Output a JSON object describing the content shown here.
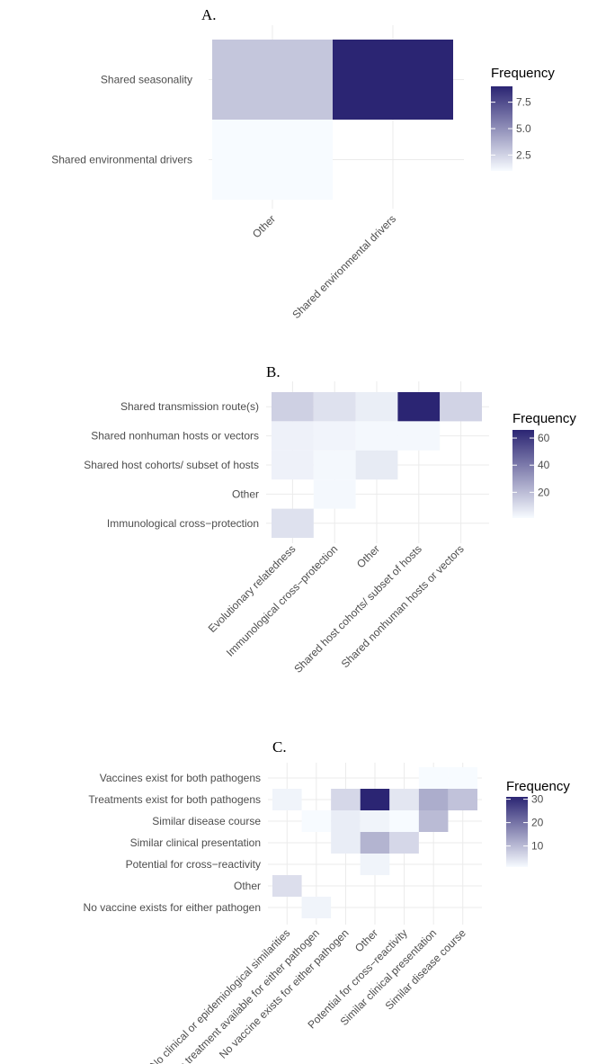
{
  "chart_data": [
    {
      "type": "heatmap",
      "title": "A.",
      "x_categories": [
        "Other",
        "Shared environmental drivers"
      ],
      "y_categories": [
        "Shared seasonality",
        "Shared environmental drivers"
      ],
      "cells": [
        {
          "x": "Other",
          "y": "Shared seasonality",
          "value": 3
        },
        {
          "x": "Shared environmental drivers",
          "y": "Shared seasonality",
          "value": 9
        },
        {
          "x": "Other",
          "y": "Shared environmental drivers",
          "value": 1
        }
      ],
      "legend": {
        "title": "Frequency",
        "ticks": [
          "2.5",
          "5.0",
          "7.5"
        ],
        "min": 1,
        "max": 9
      },
      "colors": {
        "low": "#f7fbff",
        "high": "#2b2573"
      }
    },
    {
      "type": "heatmap",
      "title": "B.",
      "x_categories": [
        "Evolutionary relatedness",
        "Immunological cross−protection",
        "Other",
        "Shared host cohorts/ subset of hosts",
        "Shared nonhuman hosts or vectors"
      ],
      "y_categories": [
        "Shared transmission route(s)",
        "Shared nonhuman hosts or vectors",
        "Shared host cohorts/ subset of hosts",
        "Other",
        "Immunological cross−protection"
      ],
      "cells": [
        {
          "x": "Evolutionary relatedness",
          "y": "Shared transmission route(s)",
          "value": 14
        },
        {
          "x": "Immunological cross−protection",
          "y": "Shared transmission route(s)",
          "value": 9
        },
        {
          "x": "Other",
          "y": "Shared transmission route(s)",
          "value": 5
        },
        {
          "x": "Shared host cohorts/ subset of hosts",
          "y": "Shared transmission route(s)",
          "value": 66
        },
        {
          "x": "Shared nonhuman hosts or vectors",
          "y": "Shared transmission route(s)",
          "value": 13
        },
        {
          "x": "Evolutionary relatedness",
          "y": "Shared nonhuman hosts or vectors",
          "value": 4
        },
        {
          "x": "Immunological cross−protection",
          "y": "Shared nonhuman hosts or vectors",
          "value": 3
        },
        {
          "x": "Other",
          "y": "Shared nonhuman hosts or vectors",
          "value": 2
        },
        {
          "x": "Shared host cohorts/ subset of hosts",
          "y": "Shared nonhuman hosts or vectors",
          "value": 2
        },
        {
          "x": "Evolutionary relatedness",
          "y": "Shared host cohorts/ subset of hosts",
          "value": 4
        },
        {
          "x": "Immunological cross−protection",
          "y": "Shared host cohorts/ subset of hosts",
          "value": 2
        },
        {
          "x": "Other",
          "y": "Shared host cohorts/ subset of hosts",
          "value": 6
        },
        {
          "x": "Immunological cross−protection",
          "y": "Other",
          "value": 2
        },
        {
          "x": "Evolutionary relatedness",
          "y": "Immunological cross−protection",
          "value": 9
        }
      ],
      "legend": {
        "title": "Frequency",
        "ticks": [
          "20",
          "40",
          "60"
        ],
        "min": 1,
        "max": 66
      },
      "colors": {
        "low": "#f7fbff",
        "high": "#2b2573"
      }
    },
    {
      "type": "heatmap",
      "title": "C.",
      "x_categories": [
        "No clinical or epidemiological similarities",
        "No treatment available for either pathogen",
        "No vaccine exists for either pathogen",
        "Other",
        "Potential for cross−reactivity",
        "Similar clinical presentation",
        "Similar disease course"
      ],
      "y_categories": [
        "Vaccines exist for both pathogens",
        "Treatments exist for both pathogens",
        "Similar disease course",
        "Similar clinical presentation",
        "Potential for cross−reactivity",
        "Other",
        "No vaccine exists for either pathogen"
      ],
      "cells": [
        {
          "x": "Similar clinical presentation",
          "y": "Vaccines exist for both pathogens",
          "value": 1
        },
        {
          "x": "Similar disease course",
          "y": "Vaccines exist for both pathogens",
          "value": 1
        },
        {
          "x": "No clinical or epidemiological similarities",
          "y": "Treatments exist for both pathogens",
          "value": 2
        },
        {
          "x": "No vaccine exists for either pathogen",
          "y": "Treatments exist for both pathogens",
          "value": 6
        },
        {
          "x": "Other",
          "y": "Treatments exist for both pathogens",
          "value": 31
        },
        {
          "x": "Potential for cross−reactivity",
          "y": "Treatments exist for both pathogens",
          "value": 4
        },
        {
          "x": "Similar clinical presentation",
          "y": "Treatments exist for both pathogens",
          "value": 12
        },
        {
          "x": "Similar disease course",
          "y": "Treatments exist for both pathogens",
          "value": 9
        },
        {
          "x": "No treatment available for either pathogen",
          "y": "Similar disease course",
          "value": 1
        },
        {
          "x": "No vaccine exists for either pathogen",
          "y": "Similar disease course",
          "value": 3
        },
        {
          "x": "Other",
          "y": "Similar disease course",
          "value": 2
        },
        {
          "x": "Potential for cross−reactivity",
          "y": "Similar disease course",
          "value": 1
        },
        {
          "x": "Similar clinical presentation",
          "y": "Similar disease course",
          "value": 10
        },
        {
          "x": "No vaccine exists for either pathogen",
          "y": "Similar clinical presentation",
          "value": 3
        },
        {
          "x": "Other",
          "y": "Similar clinical presentation",
          "value": 11
        },
        {
          "x": "Potential for cross−reactivity",
          "y": "Similar clinical presentation",
          "value": 6
        },
        {
          "x": "Other",
          "y": "Potential for cross−reactivity",
          "value": 2
        },
        {
          "x": "No clinical or epidemiological similarities",
          "y": "Other",
          "value": 5
        },
        {
          "x": "No treatment available for either pathogen",
          "y": "No vaccine exists for either pathogen",
          "value": 2
        }
      ],
      "legend": {
        "title": "Frequency",
        "ticks": [
          "10",
          "20",
          "30"
        ],
        "min": 1,
        "max": 31
      },
      "colors": {
        "low": "#f7fbff",
        "high": "#2b2573"
      }
    }
  ]
}
